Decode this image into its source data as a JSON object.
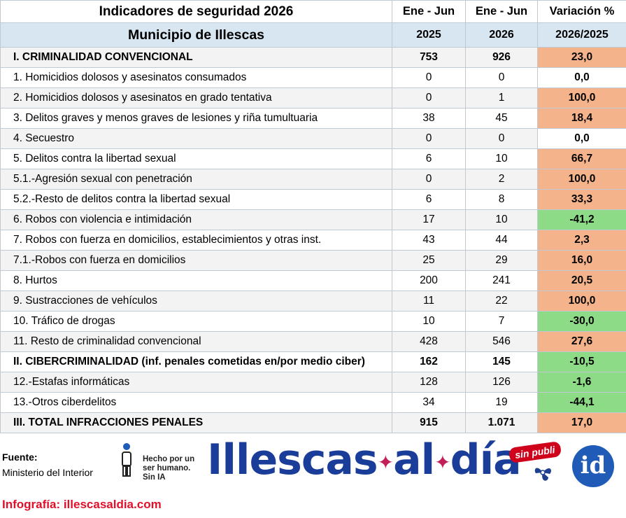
{
  "header": {
    "title": "Indicadores de seguridad 2026",
    "municipality": "Municipio de Illescas",
    "col1_period": "Ene - Jun",
    "col2_period": "Ene - Jun",
    "col3_label": "Variación %",
    "col1_year": "2025",
    "col2_year": "2026",
    "col3_years": "2026/2025"
  },
  "rows": [
    {
      "label": "I. CRIMINALIDAD CONVENCIONAL",
      "v2025": "753",
      "v2026": "926",
      "var": "23,0",
      "kind": "pos",
      "section": true
    },
    {
      "label": "1. Homicidios dolosos y asesinatos consumados",
      "v2025": "0",
      "v2026": "0",
      "var": "0,0",
      "kind": "zero",
      "section": false
    },
    {
      "label": "2. Homicidios dolosos y asesinatos en grado tentativa",
      "v2025": "0",
      "v2026": "1",
      "var": "100,0",
      "kind": "pos",
      "section": false
    },
    {
      "label": "3. Delitos graves y menos graves de lesiones y riña tumultuaria",
      "v2025": "38",
      "v2026": "45",
      "var": "18,4",
      "kind": "pos",
      "section": false
    },
    {
      "label": "4. Secuestro",
      "v2025": "0",
      "v2026": "0",
      "var": "0,0",
      "kind": "zero",
      "section": false
    },
    {
      "label": "5. Delitos contra la libertad sexual",
      "v2025": "6",
      "v2026": "10",
      "var": "66,7",
      "kind": "pos",
      "section": false
    },
    {
      "label": "5.1.-Agresión sexual con penetración",
      "v2025": "0",
      "v2026": "2",
      "var": "100,0",
      "kind": "pos",
      "section": false
    },
    {
      "label": "5.2.-Resto de delitos contra la libertad sexual",
      "v2025": "6",
      "v2026": "8",
      "var": "33,3",
      "kind": "pos",
      "section": false
    },
    {
      "label": "6. Robos con violencia e intimidación",
      "v2025": "17",
      "v2026": "10",
      "var": "-41,2",
      "kind": "neg",
      "section": false
    },
    {
      "label": "7. Robos con fuerza en domicilios, establecimientos y otras inst.",
      "v2025": "43",
      "v2026": "44",
      "var": "2,3",
      "kind": "pos",
      "section": false
    },
    {
      "label": "7.1.-Robos con fuerza en domicilios",
      "v2025": "25",
      "v2026": "29",
      "var": "16,0",
      "kind": "pos",
      "section": false
    },
    {
      "label": "8. Hurtos",
      "v2025": "200",
      "v2026": "241",
      "var": "20,5",
      "kind": "pos",
      "section": false
    },
    {
      "label": "9. Sustracciones de vehículos",
      "v2025": "11",
      "v2026": "22",
      "var": "100,0",
      "kind": "pos",
      "section": false
    },
    {
      "label": "10. Tráfico de drogas",
      "v2025": "10",
      "v2026": "7",
      "var": "-30,0",
      "kind": "neg",
      "section": false
    },
    {
      "label": "11. Resto de criminalidad convencional",
      "v2025": "428",
      "v2026": "546",
      "var": "27,6",
      "kind": "pos",
      "section": false
    },
    {
      "label": "II. CIBERCRIMINALIDAD (inf. penales cometidas en/por medio ciber)",
      "v2025": "162",
      "v2026": "145",
      "var": "-10,5",
      "kind": "neg",
      "section": true
    },
    {
      "label": "12.-Estafas informáticas",
      "v2025": "128",
      "v2026": "126",
      "var": "-1,6",
      "kind": "neg",
      "section": false
    },
    {
      "label": "13.-Otros ciberdelitos",
      "v2025": "34",
      "v2026": "19",
      "var": "-44,1",
      "kind": "neg",
      "section": false
    },
    {
      "label": "III. TOTAL INFRACCIONES PENALES",
      "v2025": "915",
      "v2026": "1.071",
      "var": "17,0",
      "kind": "pos",
      "section": true
    }
  ],
  "colors": {
    "positive": "#f4b38a",
    "negative": "#8edb87",
    "header_band": "#d7e6f1",
    "brand_blue": "#1a3d9a",
    "brand_red": "#e0102a"
  },
  "footer": {
    "source_label": "Fuente:",
    "source_value": "Ministerio del Interior",
    "human_badge_line1": "Hecho por un",
    "human_badge_line2": "ser humano.",
    "human_badge_line3": "Sin IA",
    "logo_part1": "Illescas",
    "logo_part2": "al",
    "logo_part3": "día",
    "sin_publi": "sin publi",
    "id_badge": "id",
    "infografia": "Infografía: illescasaldia.com"
  }
}
